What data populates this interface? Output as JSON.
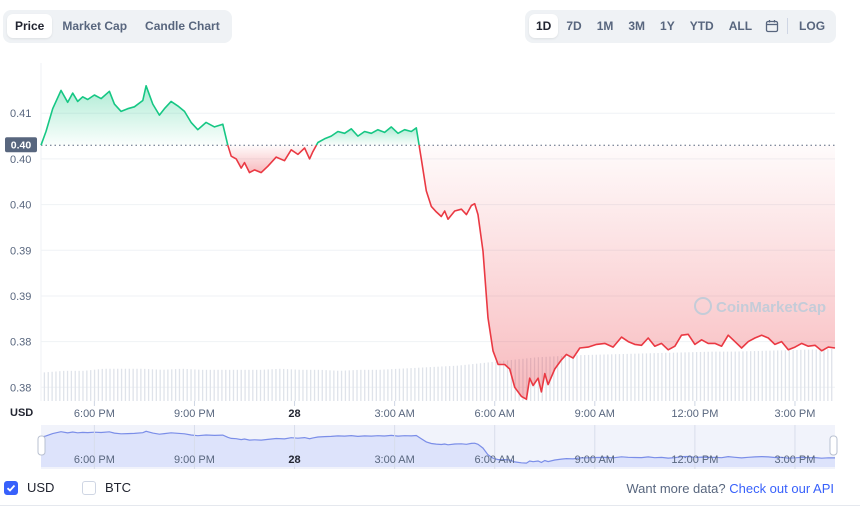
{
  "toolbar": {
    "chart_tabs": [
      "Price",
      "Market Cap",
      "Candle Chart"
    ],
    "active_chart_tab": "Price",
    "ranges": [
      "1D",
      "7D",
      "1M",
      "3M",
      "1Y",
      "YTD",
      "ALL"
    ],
    "active_range": "1D",
    "calendar_icon": "calendar-icon",
    "log_label": "LOG"
  },
  "colors": {
    "up_line": "#16c784",
    "down_line": "#ea3943",
    "brush_line": "#7b8ee8",
    "brush_fill": "#dde3fb",
    "accent": "#3861fb"
  },
  "chart_data": {
    "type": "line",
    "currency_label": "USD",
    "current_price_label": "0.40",
    "baseline": 0.4015,
    "y_tick_labels": [
      "0.41",
      "0.40",
      "0.40",
      "0.39",
      "0.39",
      "0.38",
      "0.38"
    ],
    "y_tick_values": [
      0.405,
      0.4,
      0.395,
      0.39,
      0.385,
      0.38,
      0.375
    ],
    "ylim": [
      0.3735,
      0.4105
    ],
    "x_tick_labels": [
      "6:00 PM",
      "9:00 PM",
      "28",
      "3:00 AM",
      "6:00 AM",
      "9:00 AM",
      "12:00 PM",
      "3:00 PM"
    ],
    "x_tick_hours": [
      3,
      6,
      9,
      12,
      15,
      18,
      21,
      24
    ],
    "x_range_hours": [
      1.4,
      25.2
    ],
    "bold_x_tick": "28",
    "watermark": "CoinMarketCap",
    "series": [
      {
        "x": [
          1.4,
          1.55,
          1.75,
          2.0,
          2.2,
          2.35,
          2.5,
          2.65,
          2.8,
          3.0,
          3.2,
          3.45,
          3.6,
          3.8,
          4.0,
          4.2,
          4.45,
          4.55,
          4.75,
          4.95,
          5.1,
          5.3,
          5.5,
          5.7,
          5.9,
          6.1,
          6.35,
          6.6,
          6.85,
          7.0,
          7.1,
          7.25,
          7.4,
          7.5,
          7.65,
          7.8,
          8.0,
          8.2,
          8.45,
          8.7,
          8.9,
          9.1,
          9.3,
          9.45,
          9.55,
          9.7,
          9.9,
          10.1,
          10.3,
          10.5,
          10.7,
          10.9,
          11.1,
          11.3,
          11.5,
          11.7,
          11.9,
          12.1,
          12.3,
          12.5,
          12.65,
          12.8,
          12.95,
          13.1,
          13.25,
          13.4,
          13.5,
          13.6,
          13.8,
          14.0,
          14.15,
          14.3,
          14.4,
          14.5,
          14.65,
          14.8,
          14.95,
          15.1,
          15.3,
          15.45,
          15.6,
          15.8,
          15.95,
          16.05,
          16.15,
          16.3,
          16.4,
          16.5,
          16.6,
          16.8,
          17.0,
          17.15,
          17.35,
          17.55,
          17.8,
          18.05,
          18.3,
          18.55,
          18.8,
          19.0,
          19.2,
          19.4,
          19.6,
          19.8,
          20.0,
          20.2,
          20.4,
          20.6,
          20.8,
          21.0,
          21.2,
          21.4,
          21.6,
          21.8,
          22.0,
          22.2,
          22.4,
          22.6,
          22.8,
          23.0,
          23.2,
          23.4,
          23.6,
          23.8,
          24.0,
          24.2,
          24.4,
          24.6,
          24.8,
          25.0,
          25.2
        ],
        "y": [
          0.4015,
          0.403,
          0.4055,
          0.4075,
          0.4062,
          0.4072,
          0.4063,
          0.4068,
          0.4065,
          0.407,
          0.4066,
          0.4074,
          0.406,
          0.4052,
          0.4055,
          0.4057,
          0.4064,
          0.408,
          0.406,
          0.4048,
          0.4055,
          0.4063,
          0.4058,
          0.4052,
          0.404,
          0.4032,
          0.404,
          0.4035,
          0.4038,
          0.4015,
          0.4003,
          0.4,
          0.399,
          0.3996,
          0.3985,
          0.3988,
          0.3985,
          0.3992,
          0.4002,
          0.3998,
          0.401,
          0.4005,
          0.4012,
          0.4,
          0.4008,
          0.4018,
          0.4022,
          0.4025,
          0.403,
          0.4028,
          0.4033,
          0.4025,
          0.403,
          0.4028,
          0.4032,
          0.4029,
          0.4035,
          0.4028,
          0.4032,
          0.403,
          0.4034,
          0.4,
          0.3965,
          0.3948,
          0.3942,
          0.3937,
          0.3943,
          0.3934,
          0.3943,
          0.3945,
          0.3939,
          0.3949,
          0.3951,
          0.3939,
          0.3899,
          0.3826,
          0.379,
          0.3775,
          0.3775,
          0.377,
          0.375,
          0.374,
          0.3737,
          0.376,
          0.3752,
          0.376,
          0.3745,
          0.3765,
          0.3753,
          0.377,
          0.378,
          0.3786,
          0.3782,
          0.3793,
          0.3794,
          0.3797,
          0.3798,
          0.3794,
          0.3805,
          0.38,
          0.3797,
          0.3796,
          0.3804,
          0.3795,
          0.3798,
          0.3791,
          0.3795,
          0.3807,
          0.3808,
          0.3797,
          0.3802,
          0.3798,
          0.3798,
          0.3795,
          0.3807,
          0.38,
          0.3793,
          0.38,
          0.3804,
          0.3807,
          0.3804,
          0.3797,
          0.38,
          0.3791,
          0.3794,
          0.3798,
          0.3795,
          0.3796,
          0.379,
          0.3794,
          0.3793
        ]
      }
    ],
    "volume_bars": {
      "x_start_hours": 1.5,
      "x_end_hours": 25.1,
      "relative_heights": [
        0.55,
        0.58,
        0.58,
        0.62,
        0.62,
        0.62,
        0.6,
        0.62,
        0.6,
        0.6,
        0.6,
        0.6,
        0.62,
        0.6,
        0.6,
        0.58,
        0.6,
        0.6,
        0.62,
        0.64,
        0.66,
        0.68,
        0.72,
        0.76,
        0.8,
        0.84,
        0.86,
        0.88,
        0.89,
        0.9,
        0.91,
        0.92,
        0.93,
        0.94,
        0.95,
        0.95,
        0.96,
        0.97,
        0.98,
        0.99,
        1.0
      ]
    },
    "navigator": {
      "x_tick_labels": [
        "6:00 PM",
        "9:00 PM",
        "28",
        "3:00 AM",
        "6:00 AM",
        "9:00 AM",
        "12:00 PM",
        "3:00 PM"
      ]
    }
  },
  "footer": {
    "usd_label": "USD",
    "btc_label": "BTC",
    "usd_checked": true,
    "btc_checked": false,
    "api_prompt": "Want more data?",
    "api_link": "Check out our API"
  }
}
